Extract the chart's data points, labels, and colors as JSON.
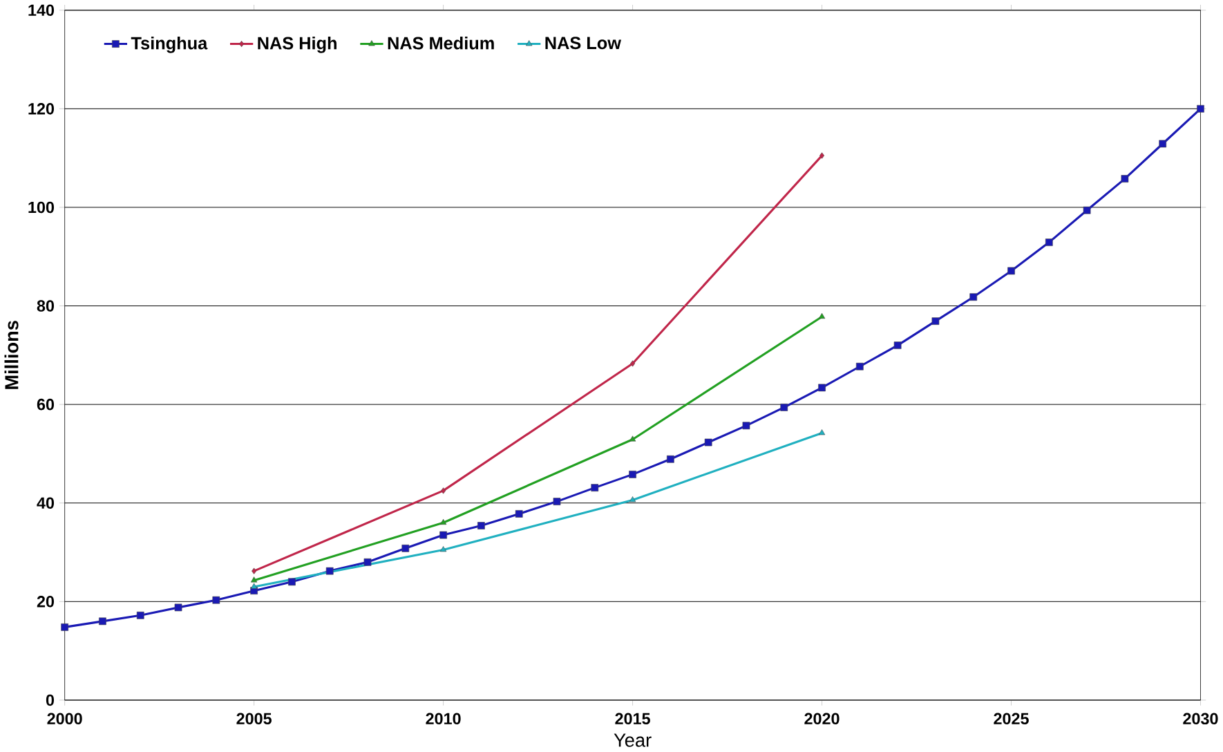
{
  "chart_data": {
    "type": "line",
    "xlabel": "Year",
    "ylabel": "Millions",
    "xlim": [
      2000,
      2030
    ],
    "xticks": [
      2000,
      2005,
      2010,
      2015,
      2020,
      2025,
      2030
    ],
    "ylim": [
      0,
      140
    ],
    "yticks": [
      0,
      20,
      40,
      60,
      80,
      100,
      120,
      140
    ],
    "grid": "y",
    "legend": "top left",
    "series": [
      {
        "name": "Tsinghua",
        "color": "#1a1ab4",
        "marker": "square",
        "x": [
          2000,
          2001,
          2002,
          2003,
          2004,
          2005,
          2006,
          2007,
          2008,
          2009,
          2010,
          2011,
          2012,
          2013,
          2014,
          2015,
          2016,
          2017,
          2018,
          2019,
          2020,
          2021,
          2022,
          2023,
          2024,
          2025,
          2026,
          2027,
          2028,
          2029,
          2030
        ],
        "values": [
          14.8,
          16.0,
          17.2,
          18.8,
          20.3,
          22.2,
          24.0,
          26.2,
          28.0,
          30.8,
          33.5,
          35.4,
          37.8,
          40.3,
          43.1,
          45.8,
          48.9,
          52.3,
          55.7,
          59.4,
          63.4,
          67.7,
          72.0,
          76.9,
          81.8,
          87.1,
          92.9,
          99.4,
          105.8,
          112.9,
          120
        ]
      },
      {
        "name": "NAS High",
        "color": "#c0264a",
        "marker": "diamond",
        "x": [
          2005,
          2010,
          2015,
          2020
        ],
        "values": [
          26.2,
          42.5,
          68.3,
          110.5
        ]
      },
      {
        "name": "NAS Medium",
        "color": "#22a022",
        "marker": "triangle",
        "x": [
          2005,
          2010,
          2015,
          2020
        ],
        "values": [
          24.3,
          36.0,
          52.9,
          77.8
        ]
      },
      {
        "name": "NAS Low",
        "color": "#20b0c0",
        "marker": "triangle",
        "x": [
          2005,
          2010,
          2015,
          2020
        ],
        "values": [
          23.0,
          30.5,
          40.6,
          54.2
        ]
      }
    ]
  }
}
